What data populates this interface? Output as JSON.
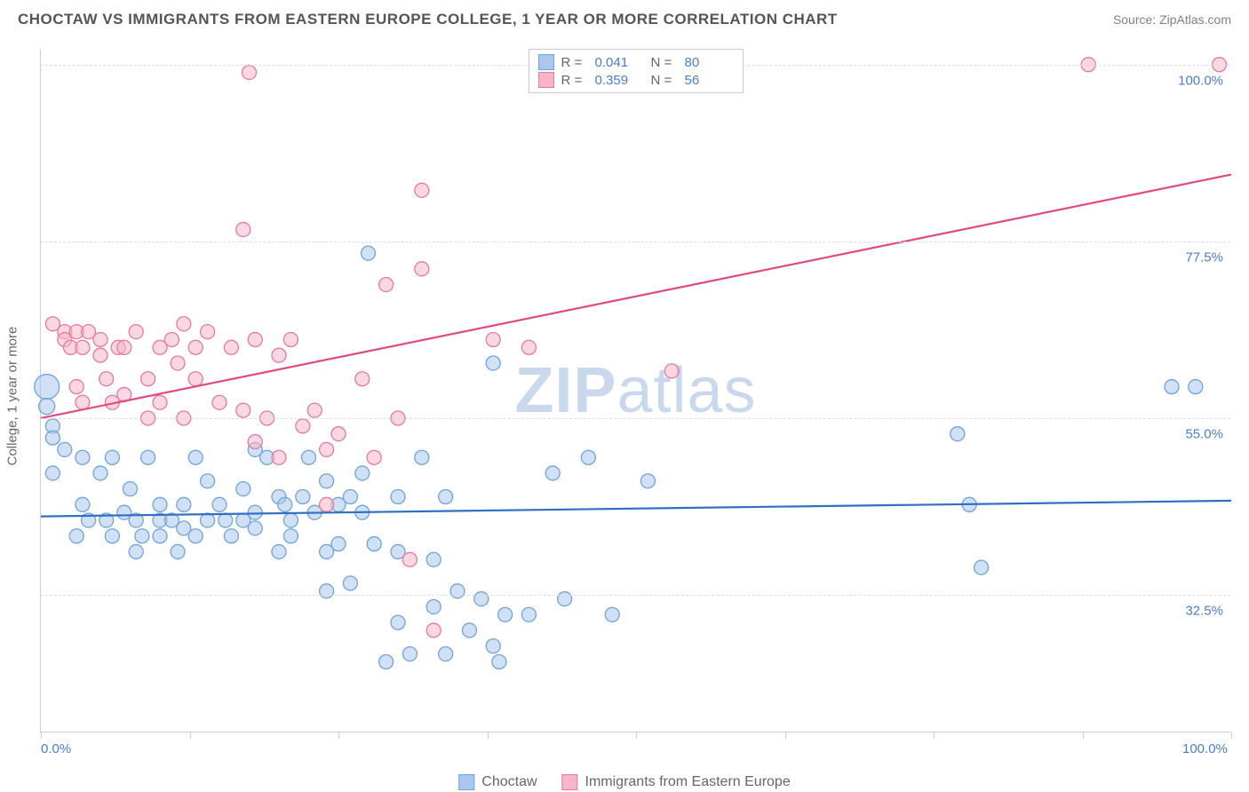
{
  "header": {
    "title": "CHOCTAW VS IMMIGRANTS FROM EASTERN EUROPE COLLEGE, 1 YEAR OR MORE CORRELATION CHART",
    "source": "Source: ZipAtlas.com"
  },
  "chart": {
    "type": "scatter",
    "y_axis_title": "College, 1 year or more",
    "watermark": "ZIPatlas",
    "xlim": [
      0,
      100
    ],
    "ylim": [
      15,
      102
    ],
    "x_ticks": [
      0,
      12.5,
      25,
      37.5,
      50,
      62.5,
      75,
      87.5,
      100
    ],
    "x_tick_labels": {
      "0": "0.0%",
      "100": "100.0%"
    },
    "y_gridlines": [
      32.5,
      55.0,
      77.5,
      100.0
    ],
    "y_tick_labels": [
      "32.5%",
      "55.0%",
      "77.5%",
      "100.0%"
    ],
    "background_color": "#ffffff",
    "grid_color": "#dddddd",
    "axis_color": "#cccccc",
    "tick_label_color": "#4a7ec9",
    "series": [
      {
        "name": "Choctaw",
        "legend_label": "Choctaw",
        "fill": "#a9c8ec",
        "stroke": "#6fa3db",
        "fill_opacity": 0.55,
        "marker_radius": 8,
        "trend": {
          "x1": 0,
          "y1": 42.5,
          "x2": 100,
          "y2": 44.5,
          "color": "#2f6fc4",
          "width": 2.2
        },
        "R": "0.041",
        "N": "80",
        "points": [
          [
            0.5,
            59,
            14
          ],
          [
            0.5,
            56.5,
            9
          ],
          [
            1,
            54,
            8
          ],
          [
            1,
            52.5,
            8
          ],
          [
            1,
            48,
            8
          ],
          [
            2,
            51,
            8
          ],
          [
            3,
            40,
            8
          ],
          [
            3.5,
            50,
            8
          ],
          [
            3.5,
            44,
            8
          ],
          [
            4,
            42,
            8
          ],
          [
            5,
            48,
            8
          ],
          [
            5.5,
            42,
            8
          ],
          [
            6,
            50,
            8
          ],
          [
            6,
            40,
            8
          ],
          [
            7,
            43,
            8
          ],
          [
            7.5,
            46,
            8
          ],
          [
            8,
            42,
            8
          ],
          [
            8,
            38,
            8
          ],
          [
            8.5,
            40,
            8
          ],
          [
            9,
            50,
            8
          ],
          [
            10,
            42,
            8
          ],
          [
            10,
            44,
            8
          ],
          [
            10,
            40,
            8
          ],
          [
            11,
            42,
            8
          ],
          [
            11.5,
            38,
            8
          ],
          [
            12,
            44,
            8
          ],
          [
            12,
            41,
            8
          ],
          [
            13,
            40,
            8
          ],
          [
            13,
            50,
            8
          ],
          [
            14,
            42,
            8
          ],
          [
            14,
            47,
            8
          ],
          [
            15,
            44,
            8
          ],
          [
            15.5,
            42,
            8
          ],
          [
            16,
            40,
            8
          ],
          [
            17,
            42,
            8
          ],
          [
            17,
            46,
            8
          ],
          [
            18,
            43,
            8
          ],
          [
            18,
            51,
            8
          ],
          [
            18,
            41,
            8
          ],
          [
            19,
            50,
            8
          ],
          [
            20,
            38,
            8
          ],
          [
            20,
            45,
            8
          ],
          [
            20.5,
            44,
            8
          ],
          [
            21,
            40,
            8
          ],
          [
            21,
            42,
            8
          ],
          [
            22,
            45,
            8
          ],
          [
            22.5,
            50,
            8
          ],
          [
            23,
            43,
            8
          ],
          [
            24,
            33,
            8
          ],
          [
            24,
            38,
            8
          ],
          [
            24,
            47,
            8
          ],
          [
            25,
            39,
            8
          ],
          [
            25,
            44,
            8
          ],
          [
            26,
            34,
            8
          ],
          [
            26,
            45,
            8
          ],
          [
            27,
            48,
            8
          ],
          [
            27,
            43,
            8
          ],
          [
            27.5,
            76,
            8
          ],
          [
            28,
            39,
            8
          ],
          [
            29,
            24,
            8
          ],
          [
            30,
            38,
            8
          ],
          [
            30,
            45,
            8
          ],
          [
            30,
            29,
            8
          ],
          [
            31,
            25,
            8
          ],
          [
            32,
            50,
            8
          ],
          [
            33,
            31,
            8
          ],
          [
            33,
            37,
            8
          ],
          [
            34,
            45,
            8
          ],
          [
            34,
            25,
            8
          ],
          [
            35,
            33,
            8
          ],
          [
            36,
            28,
            8
          ],
          [
            37,
            32,
            8
          ],
          [
            38,
            62,
            8
          ],
          [
            38,
            26,
            8
          ],
          [
            38.5,
            24,
            8
          ],
          [
            39,
            30,
            8
          ],
          [
            41,
            30,
            8
          ],
          [
            43,
            48,
            8
          ],
          [
            44,
            32,
            8
          ],
          [
            46,
            50,
            8
          ],
          [
            48,
            30,
            8
          ],
          [
            51,
            47,
            8
          ],
          [
            77,
            53,
            8
          ],
          [
            78,
            44,
            8
          ],
          [
            79,
            36,
            8
          ],
          [
            95,
            59,
            8
          ],
          [
            97,
            59,
            8
          ]
        ]
      },
      {
        "name": "Immigrants from Eastern Europe",
        "legend_label": "Immigrants from Eastern Europe",
        "fill": "#f5b6c8",
        "stroke": "#e77a9c",
        "fill_opacity": 0.55,
        "marker_radius": 8,
        "trend": {
          "x1": 0,
          "y1": 55,
          "x2": 100,
          "y2": 86,
          "color": "#e24a7c",
          "width": 2.2
        },
        "R": "0.359",
        "N": "56",
        "points": [
          [
            1,
            67,
            8
          ],
          [
            2,
            66,
            8
          ],
          [
            2,
            65,
            8
          ],
          [
            2.5,
            64,
            8
          ],
          [
            3,
            66,
            8
          ],
          [
            3,
            59,
            8
          ],
          [
            3.5,
            64,
            8
          ],
          [
            3.5,
            57,
            8
          ],
          [
            4,
            66,
            8
          ],
          [
            5,
            65,
            8
          ],
          [
            5,
            63,
            8
          ],
          [
            5.5,
            60,
            8
          ],
          [
            6,
            57,
            8
          ],
          [
            6.5,
            64,
            8
          ],
          [
            7,
            64,
            8
          ],
          [
            7,
            58,
            8
          ],
          [
            8,
            66,
            8
          ],
          [
            9,
            60,
            8
          ],
          [
            9,
            55,
            8
          ],
          [
            10,
            57,
            8
          ],
          [
            10,
            64,
            8
          ],
          [
            11,
            65,
            8
          ],
          [
            11.5,
            62,
            8
          ],
          [
            12,
            67,
            8
          ],
          [
            12,
            55,
            8
          ],
          [
            13,
            64,
            8
          ],
          [
            13,
            60,
            8
          ],
          [
            14,
            66,
            8
          ],
          [
            15,
            57,
            8
          ],
          [
            16,
            64,
            8
          ],
          [
            17,
            56,
            8
          ],
          [
            17,
            79,
            8
          ],
          [
            17.5,
            99,
            8
          ],
          [
            18,
            65,
            8
          ],
          [
            18,
            52,
            8
          ],
          [
            19,
            55,
            8
          ],
          [
            20,
            63,
            8
          ],
          [
            20,
            50,
            8
          ],
          [
            21,
            65,
            8
          ],
          [
            22,
            54,
            8
          ],
          [
            23,
            56,
            8
          ],
          [
            24,
            51,
            8
          ],
          [
            24,
            44,
            8
          ],
          [
            25,
            53,
            8
          ],
          [
            27,
            60,
            8
          ],
          [
            28,
            50,
            8
          ],
          [
            29,
            72,
            8
          ],
          [
            30,
            55,
            8
          ],
          [
            31,
            37,
            8
          ],
          [
            32,
            84,
            8
          ],
          [
            32,
            74,
            8
          ],
          [
            33,
            28,
            8
          ],
          [
            38,
            65,
            8
          ],
          [
            41,
            64,
            8
          ],
          [
            53,
            61,
            8
          ],
          [
            88,
            100,
            8
          ],
          [
            99,
            100,
            8
          ]
        ]
      }
    ]
  },
  "legend_bottom": {
    "items": [
      {
        "swatch_fill": "#a9c8ec",
        "swatch_stroke": "#6fa3db",
        "label": "Choctaw"
      },
      {
        "swatch_fill": "#f5b6c8",
        "swatch_stroke": "#e77a9c",
        "label": "Immigrants from Eastern Europe"
      }
    ]
  }
}
